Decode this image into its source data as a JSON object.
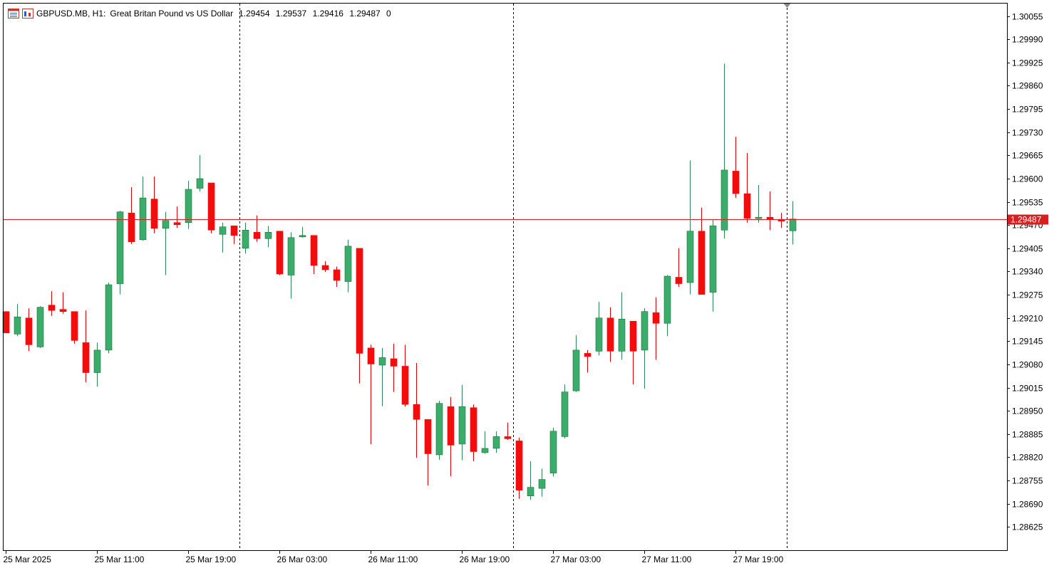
{
  "header": {
    "symbol_timeframe": "GBPUSD.MB, H1:",
    "description": "Great Britan Pound vs US Dollar",
    "open": "1.29454",
    "high": "1.29537",
    "low": "1.29416",
    "close": "1.29487",
    "volume": "0"
  },
  "icons": [
    "chart-window-icon",
    "bar-chart-icon"
  ],
  "current_price_label": "1.29487",
  "colors": {
    "bull": "#3aad6a",
    "bear": "#f20d0d",
    "wick_bull": "#2a8a4e",
    "wick_bear": "#d40000",
    "price_line": "#d62020",
    "axis": "#000000"
  },
  "chart_data": {
    "type": "candlestick",
    "symbol": "GBPUSD.MB",
    "timeframe": "H1",
    "ylim": [
      1.2856,
      1.3009
    ],
    "y_ticks": [
      "1.30055",
      "1.29990",
      "1.29925",
      "1.29860",
      "1.29795",
      "1.29730",
      "1.29665",
      "1.29600",
      "1.29535",
      "1.29470",
      "1.29405",
      "1.29340",
      "1.29275",
      "1.29210",
      "1.29145",
      "1.29080",
      "1.29015",
      "1.28950",
      "1.28885",
      "1.28820",
      "1.28755",
      "1.28690",
      "1.28625"
    ],
    "x_labels": [
      {
        "index": 0,
        "label": "25 Mar 2025"
      },
      {
        "index": 8,
        "label": "25 Mar 11:00"
      },
      {
        "index": 16,
        "label": "25 Mar 19:00"
      },
      {
        "index": 24,
        "label": "26 Mar 03:00"
      },
      {
        "index": 32,
        "label": "26 Mar 11:00"
      },
      {
        "index": 40,
        "label": "26 Mar 19:00"
      },
      {
        "index": 48,
        "label": "27 Mar 03:00"
      },
      {
        "index": 56,
        "label": "27 Mar 11:00"
      },
      {
        "index": 64,
        "label": "27 Mar 19:00"
      }
    ],
    "day_separators_after_index": [
      20,
      44,
      68
    ],
    "current_price": 1.29487,
    "candles": [
      {
        "o": 1.29228,
        "h": 1.29228,
        "l": 1.29168,
        "c": 1.29168
      },
      {
        "o": 1.29165,
        "h": 1.29249,
        "l": 1.29159,
        "c": 1.29213
      },
      {
        "o": 1.2921,
        "h": 1.29237,
        "l": 1.29117,
        "c": 1.29135
      },
      {
        "o": 1.29129,
        "h": 1.29243,
        "l": 1.29126,
        "c": 1.2924
      },
      {
        "o": 1.29246,
        "h": 1.29285,
        "l": 1.29216,
        "c": 1.29231
      },
      {
        "o": 1.29234,
        "h": 1.29282,
        "l": 1.29222,
        "c": 1.29228
      },
      {
        "o": 1.29228,
        "h": 1.29228,
        "l": 1.29138,
        "c": 1.29147
      },
      {
        "o": 1.29141,
        "h": 1.29231,
        "l": 1.2903,
        "c": 1.29057
      },
      {
        "o": 1.29057,
        "h": 1.29141,
        "l": 1.29018,
        "c": 1.2912
      },
      {
        "o": 1.2912,
        "h": 1.29309,
        "l": 1.29111,
        "c": 1.29303
      },
      {
        "o": 1.29306,
        "h": 1.2951,
        "l": 1.29276,
        "c": 1.29507
      },
      {
        "o": 1.29504,
        "h": 1.29576,
        "l": 1.29417,
        "c": 1.29423
      },
      {
        "o": 1.29429,
        "h": 1.29606,
        "l": 1.29426,
        "c": 1.29546
      },
      {
        "o": 1.29543,
        "h": 1.29606,
        "l": 1.29447,
        "c": 1.29461
      },
      {
        "o": 1.29461,
        "h": 1.29507,
        "l": 1.2933,
        "c": 1.29483
      },
      {
        "o": 1.29477,
        "h": 1.29522,
        "l": 1.29462,
        "c": 1.29471
      },
      {
        "o": 1.29477,
        "h": 1.29594,
        "l": 1.29459,
        "c": 1.2957
      },
      {
        "o": 1.29573,
        "h": 1.29666,
        "l": 1.29564,
        "c": 1.296
      },
      {
        "o": 1.29588,
        "h": 1.29588,
        "l": 1.29447,
        "c": 1.29456
      },
      {
        "o": 1.29444,
        "h": 1.29477,
        "l": 1.29393,
        "c": 1.29465
      },
      {
        "o": 1.29468,
        "h": 1.29468,
        "l": 1.29417,
        "c": 1.29441
      },
      {
        "o": 1.29405,
        "h": 1.29477,
        "l": 1.2939,
        "c": 1.29456
      },
      {
        "o": 1.2945,
        "h": 1.29497,
        "l": 1.29423,
        "c": 1.29432
      },
      {
        "o": 1.29432,
        "h": 1.29468,
        "l": 1.29408,
        "c": 1.2945
      },
      {
        "o": 1.29453,
        "h": 1.29453,
        "l": 1.2933,
        "c": 1.29333
      },
      {
        "o": 1.2933,
        "h": 1.2945,
        "l": 1.29264,
        "c": 1.29435
      },
      {
        "o": 1.29438,
        "h": 1.29465,
        "l": 1.29435,
        "c": 1.29441
      },
      {
        "o": 1.29441,
        "h": 1.29441,
        "l": 1.29333,
        "c": 1.29357
      },
      {
        "o": 1.29357,
        "h": 1.29369,
        "l": 1.29339,
        "c": 1.29345
      },
      {
        "o": 1.29345,
        "h": 1.29354,
        "l": 1.29297,
        "c": 1.29315
      },
      {
        "o": 1.29312,
        "h": 1.29429,
        "l": 1.29282,
        "c": 1.29411
      },
      {
        "o": 1.29405,
        "h": 1.29405,
        "l": 1.29027,
        "c": 1.29111
      },
      {
        "o": 1.29126,
        "h": 1.29135,
        "l": 1.28856,
        "c": 1.29081
      },
      {
        "o": 1.29078,
        "h": 1.29126,
        "l": 1.28963,
        "c": 1.29099
      },
      {
        "o": 1.29096,
        "h": 1.29138,
        "l": 1.29003,
        "c": 1.29075
      },
      {
        "o": 1.29075,
        "h": 1.29135,
        "l": 1.28962,
        "c": 1.28968
      },
      {
        "o": 1.28968,
        "h": 1.29084,
        "l": 1.28819,
        "c": 1.28926
      },
      {
        "o": 1.28926,
        "h": 1.28926,
        "l": 1.28741,
        "c": 1.2883
      },
      {
        "o": 1.28827,
        "h": 1.28978,
        "l": 1.28813,
        "c": 1.28971
      },
      {
        "o": 1.28962,
        "h": 1.28989,
        "l": 1.28767,
        "c": 1.28854
      },
      {
        "o": 1.28857,
        "h": 1.29023,
        "l": 1.28812,
        "c": 1.28962
      },
      {
        "o": 1.28959,
        "h": 1.28968,
        "l": 1.28809,
        "c": 1.28836
      },
      {
        "o": 1.28833,
        "h": 1.28893,
        "l": 1.2883,
        "c": 1.28845
      },
      {
        "o": 1.28845,
        "h": 1.28893,
        "l": 1.28833,
        "c": 1.28878
      },
      {
        "o": 1.28878,
        "h": 1.28917,
        "l": 1.28869,
        "c": 1.28872
      },
      {
        "o": 1.28866,
        "h": 1.28875,
        "l": 1.28704,
        "c": 1.28728
      },
      {
        "o": 1.28712,
        "h": 1.28809,
        "l": 1.28701,
        "c": 1.28736
      },
      {
        "o": 1.28733,
        "h": 1.28788,
        "l": 1.2871,
        "c": 1.28758
      },
      {
        "o": 1.28776,
        "h": 1.28903,
        "l": 1.28766,
        "c": 1.28893
      },
      {
        "o": 1.28878,
        "h": 1.29024,
        "l": 1.28873,
        "c": 1.29003
      },
      {
        "o": 1.29006,
        "h": 1.29162,
        "l": 1.29003,
        "c": 1.2912
      },
      {
        "o": 1.29111,
        "h": 1.2912,
        "l": 1.29057,
        "c": 1.29102
      },
      {
        "o": 1.29117,
        "h": 1.29255,
        "l": 1.29105,
        "c": 1.2921
      },
      {
        "o": 1.2921,
        "h": 1.2924,
        "l": 1.29087,
        "c": 1.29117
      },
      {
        "o": 1.29117,
        "h": 1.29282,
        "l": 1.29093,
        "c": 1.29207
      },
      {
        "o": 1.29201,
        "h": 1.29201,
        "l": 1.29024,
        "c": 1.29117
      },
      {
        "o": 1.2912,
        "h": 1.29237,
        "l": 1.29012,
        "c": 1.29228
      },
      {
        "o": 1.29225,
        "h": 1.29268,
        "l": 1.29093,
        "c": 1.29195
      },
      {
        "o": 1.29195,
        "h": 1.2933,
        "l": 1.29159,
        "c": 1.29327
      },
      {
        "o": 1.29324,
        "h": 1.29405,
        "l": 1.29297,
        "c": 1.29306
      },
      {
        "o": 1.29309,
        "h": 1.29651,
        "l": 1.29276,
        "c": 1.29453
      },
      {
        "o": 1.29453,
        "h": 1.29519,
        "l": 1.29276,
        "c": 1.29276
      },
      {
        "o": 1.29282,
        "h": 1.29486,
        "l": 1.29228,
        "c": 1.29468
      },
      {
        "o": 1.29456,
        "h": 1.29922,
        "l": 1.29432,
        "c": 1.29624
      },
      {
        "o": 1.29621,
        "h": 1.29717,
        "l": 1.29546,
        "c": 1.29558
      },
      {
        "o": 1.29558,
        "h": 1.29672,
        "l": 1.29477,
        "c": 1.29489
      },
      {
        "o": 1.29489,
        "h": 1.29582,
        "l": 1.29477,
        "c": 1.29492
      },
      {
        "o": 1.29492,
        "h": 1.29564,
        "l": 1.29456,
        "c": 1.29486
      },
      {
        "o": 1.29486,
        "h": 1.29504,
        "l": 1.29462,
        "c": 1.29481
      },
      {
        "o": 1.29454,
        "h": 1.29537,
        "l": 1.29416,
        "c": 1.29487
      }
    ]
  }
}
